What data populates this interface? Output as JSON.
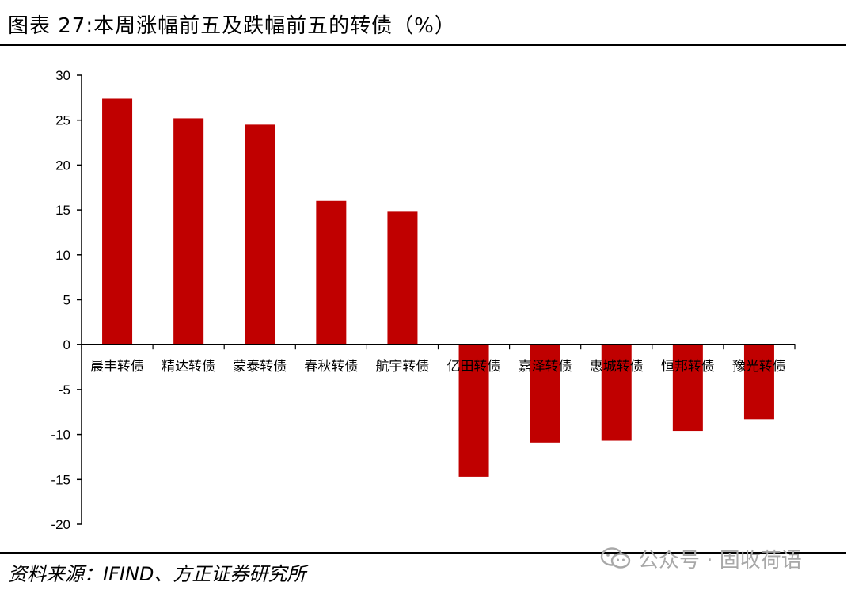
{
  "title": "图表 27:本周涨幅前五及跌幅前五的转债（%）",
  "source": "资料来源：IFIND、方正证券研究所",
  "watermark": {
    "text": "公众号 · 固收荷语",
    "icon": "wechat-icon"
  },
  "colors": {
    "bar": "#c00000",
    "axis": "#000000",
    "watermark": "#a8a8a8"
  },
  "chart_data": {
    "type": "bar",
    "categories": [
      "晨丰转债",
      "精达转债",
      "蒙泰转债",
      "春秋转债",
      "航宇转债",
      "亿田转债",
      "嘉泽转债",
      "惠城转债",
      "恒邦转债",
      "豫光转债"
    ],
    "values": [
      27.4,
      25.2,
      24.5,
      16.0,
      14.8,
      -14.7,
      -10.9,
      -10.7,
      -9.6,
      -8.3
    ],
    "ylim": [
      -20,
      30
    ],
    "yticks": [
      "30",
      "25",
      "20",
      "15",
      "10",
      "5",
      "0",
      "-5",
      "-10",
      "-15",
      "-20"
    ],
    "xlabel": "",
    "ylabel": "",
    "grid": false,
    "legend": "none"
  }
}
